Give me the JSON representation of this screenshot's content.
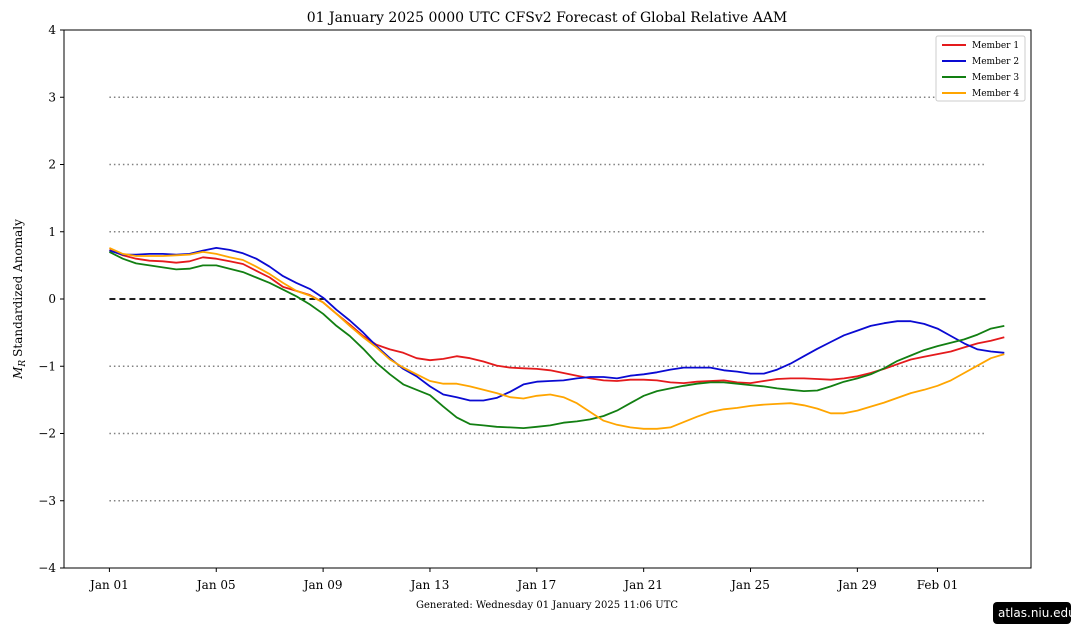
{
  "chart_data": {
    "type": "line",
    "title": "01  January  2025 0000 UTC   CFSv2 Forecast of Global Relative AAM",
    "ylabel_symbol": "M",
    "ylabel_subscript": "R",
    "ylabel": "Standardized Anomaly",
    "footer": "Generated: Wednesday  01  January  2025  11:06 UTC",
    "watermark": "atlas.niu.edu",
    "ylim": [
      -4,
      4
    ],
    "yticks": [
      -4,
      -3,
      -2,
      -1,
      0,
      1,
      2,
      3,
      4
    ],
    "ytick_labels": [
      "−4",
      "−3",
      "−2",
      "−1",
      "0",
      "1",
      "2",
      "3",
      "4"
    ],
    "xlim_days": [
      -1.7,
      34.5
    ],
    "xticks": [
      {
        "day": 0,
        "label": "Jan 01"
      },
      {
        "day": 4,
        "label": "Jan 05"
      },
      {
        "day": 8,
        "label": "Jan 09"
      },
      {
        "day": 12,
        "label": "Jan 13"
      },
      {
        "day": 16,
        "label": "Jan 17"
      },
      {
        "day": 20,
        "label": "Jan 21"
      },
      {
        "day": 24,
        "label": "Jan 25"
      },
      {
        "day": 28,
        "label": "Jan 29"
      },
      {
        "day": 31,
        "label": "Feb 01"
      }
    ],
    "reference_lines": [
      {
        "y": 3,
        "style": "dotted",
        "color": "#808080"
      },
      {
        "y": 2,
        "style": "dotted",
        "color": "#808080"
      },
      {
        "y": 1,
        "style": "dotted",
        "color": "#808080"
      },
      {
        "y": 0,
        "style": "dashed",
        "color": "#000000"
      },
      {
        "y": -1,
        "style": "dotted",
        "color": "#808080"
      },
      {
        "y": -2,
        "style": "dotted",
        "color": "#808080"
      },
      {
        "y": -3,
        "style": "dotted",
        "color": "#808080"
      }
    ],
    "reference_line_span_days": [
      0,
      32.8
    ],
    "legend_position": "top-right",
    "grid": false,
    "series": [
      {
        "name": "Member 1",
        "color": "#e41a1c",
        "points": [
          [
            0,
            0.73
          ],
          [
            0.5,
            0.65
          ],
          [
            1,
            0.6
          ],
          [
            1.5,
            0.57
          ],
          [
            2,
            0.56
          ],
          [
            2.5,
            0.54
          ],
          [
            3,
            0.56
          ],
          [
            3.5,
            0.62
          ],
          [
            4,
            0.6
          ],
          [
            4.5,
            0.56
          ],
          [
            5,
            0.52
          ],
          [
            5.5,
            0.42
          ],
          [
            6,
            0.32
          ],
          [
            6.5,
            0.18
          ],
          [
            7,
            0.12
          ],
          [
            7.5,
            0.06
          ],
          [
            8,
            -0.05
          ],
          [
            8.5,
            -0.22
          ],
          [
            9,
            -0.38
          ],
          [
            9.5,
            -0.55
          ],
          [
            10,
            -0.68
          ],
          [
            10.5,
            -0.75
          ],
          [
            11,
            -0.8
          ],
          [
            11.5,
            -0.88
          ],
          [
            12,
            -0.91
          ],
          [
            12.5,
            -0.89
          ],
          [
            13,
            -0.85
          ],
          [
            13.5,
            -0.88
          ],
          [
            14,
            -0.93
          ],
          [
            14.5,
            -0.99
          ],
          [
            15,
            -1.02
          ],
          [
            15.5,
            -1.03
          ],
          [
            16,
            -1.04
          ],
          [
            16.5,
            -1.06
          ],
          [
            17,
            -1.1
          ],
          [
            17.5,
            -1.14
          ],
          [
            18,
            -1.18
          ],
          [
            18.5,
            -1.21
          ],
          [
            19,
            -1.22
          ],
          [
            19.5,
            -1.2
          ],
          [
            20,
            -1.2
          ],
          [
            20.5,
            -1.21
          ],
          [
            21,
            -1.24
          ],
          [
            21.5,
            -1.25
          ],
          [
            22,
            -1.23
          ],
          [
            22.5,
            -1.22
          ],
          [
            23,
            -1.21
          ],
          [
            23.5,
            -1.24
          ],
          [
            24,
            -1.25
          ],
          [
            24.5,
            -1.22
          ],
          [
            25,
            -1.19
          ],
          [
            25.5,
            -1.18
          ],
          [
            26,
            -1.18
          ],
          [
            26.5,
            -1.19
          ],
          [
            27,
            -1.2
          ],
          [
            27.5,
            -1.18
          ],
          [
            28,
            -1.15
          ],
          [
            28.5,
            -1.1
          ],
          [
            29,
            -1.04
          ],
          [
            29.5,
            -0.97
          ],
          [
            30,
            -0.9
          ],
          [
            30.5,
            -0.86
          ],
          [
            31,
            -0.82
          ],
          [
            31.5,
            -0.78
          ],
          [
            32,
            -0.72
          ],
          [
            32.5,
            -0.66
          ],
          [
            33,
            -0.62
          ],
          [
            33.5,
            -0.57
          ]
        ]
      },
      {
        "name": "Member 2",
        "color": "#0a0ad2",
        "points": [
          [
            0,
            0.72
          ],
          [
            0.5,
            0.66
          ],
          [
            1,
            0.66
          ],
          [
            1.5,
            0.67
          ],
          [
            2,
            0.67
          ],
          [
            2.5,
            0.66
          ],
          [
            3,
            0.67
          ],
          [
            3.5,
            0.72
          ],
          [
            4,
            0.76
          ],
          [
            4.5,
            0.73
          ],
          [
            5,
            0.68
          ],
          [
            5.5,
            0.6
          ],
          [
            6,
            0.48
          ],
          [
            6.5,
            0.34
          ],
          [
            7,
            0.24
          ],
          [
            7.5,
            0.15
          ],
          [
            8,
            0.02
          ],
          [
            8.5,
            -0.16
          ],
          [
            9,
            -0.32
          ],
          [
            9.5,
            -0.5
          ],
          [
            10,
            -0.7
          ],
          [
            10.5,
            -0.88
          ],
          [
            11,
            -1.04
          ],
          [
            11.5,
            -1.15
          ],
          [
            12,
            -1.3
          ],
          [
            12.5,
            -1.42
          ],
          [
            13,
            -1.46
          ],
          [
            13.5,
            -1.51
          ],
          [
            14,
            -1.51
          ],
          [
            14.5,
            -1.47
          ],
          [
            15,
            -1.38
          ],
          [
            15.5,
            -1.27
          ],
          [
            16,
            -1.23
          ],
          [
            16.5,
            -1.22
          ],
          [
            17,
            -1.21
          ],
          [
            17.5,
            -1.18
          ],
          [
            18,
            -1.16
          ],
          [
            18.5,
            -1.16
          ],
          [
            19,
            -1.18
          ],
          [
            19.5,
            -1.14
          ],
          [
            20,
            -1.12
          ],
          [
            20.5,
            -1.09
          ],
          [
            21,
            -1.05
          ],
          [
            21.5,
            -1.02
          ],
          [
            22,
            -1.02
          ],
          [
            22.5,
            -1.02
          ],
          [
            23,
            -1.06
          ],
          [
            23.5,
            -1.08
          ],
          [
            24,
            -1.11
          ],
          [
            24.5,
            -1.11
          ],
          [
            25,
            -1.05
          ],
          [
            25.5,
            -0.96
          ],
          [
            26,
            -0.85
          ],
          [
            26.5,
            -0.74
          ],
          [
            27,
            -0.64
          ],
          [
            27.5,
            -0.54
          ],
          [
            28,
            -0.47
          ],
          [
            28.5,
            -0.4
          ],
          [
            29,
            -0.36
          ],
          [
            29.5,
            -0.33
          ],
          [
            30,
            -0.33
          ],
          [
            30.5,
            -0.37
          ],
          [
            31,
            -0.44
          ],
          [
            31.5,
            -0.55
          ],
          [
            32,
            -0.66
          ],
          [
            32.5,
            -0.75
          ],
          [
            33,
            -0.78
          ],
          [
            33.5,
            -0.8
          ]
        ]
      },
      {
        "name": "Member 3",
        "color": "#127f12",
        "points": [
          [
            0,
            0.7
          ],
          [
            0.5,
            0.6
          ],
          [
            1,
            0.53
          ],
          [
            1.5,
            0.5
          ],
          [
            2,
            0.47
          ],
          [
            2.5,
            0.44
          ],
          [
            3,
            0.45
          ],
          [
            3.5,
            0.5
          ],
          [
            4,
            0.5
          ],
          [
            4.5,
            0.45
          ],
          [
            5,
            0.4
          ],
          [
            5.5,
            0.32
          ],
          [
            6,
            0.24
          ],
          [
            6.5,
            0.14
          ],
          [
            7,
            0.04
          ],
          [
            7.5,
            -0.08
          ],
          [
            8,
            -0.22
          ],
          [
            8.5,
            -0.4
          ],
          [
            9,
            -0.55
          ],
          [
            9.5,
            -0.74
          ],
          [
            10,
            -0.95
          ],
          [
            10.5,
            -1.12
          ],
          [
            11,
            -1.27
          ],
          [
            11.5,
            -1.35
          ],
          [
            12,
            -1.43
          ],
          [
            12.5,
            -1.6
          ],
          [
            13,
            -1.76
          ],
          [
            13.5,
            -1.86
          ],
          [
            14,
            -1.88
          ],
          [
            14.5,
            -1.9
          ],
          [
            15,
            -1.91
          ],
          [
            15.5,
            -1.92
          ],
          [
            16,
            -1.9
          ],
          [
            16.5,
            -1.88
          ],
          [
            17,
            -1.84
          ],
          [
            17.5,
            -1.82
          ],
          [
            18,
            -1.79
          ],
          [
            18.5,
            -1.74
          ],
          [
            19,
            -1.66
          ],
          [
            19.5,
            -1.55
          ],
          [
            20,
            -1.44
          ],
          [
            20.5,
            -1.37
          ],
          [
            21,
            -1.33
          ],
          [
            21.5,
            -1.29
          ],
          [
            22,
            -1.26
          ],
          [
            22.5,
            -1.24
          ],
          [
            23,
            -1.24
          ],
          [
            23.5,
            -1.26
          ],
          [
            24,
            -1.28
          ],
          [
            24.5,
            -1.3
          ],
          [
            25,
            -1.33
          ],
          [
            25.5,
            -1.35
          ],
          [
            26,
            -1.37
          ],
          [
            26.5,
            -1.36
          ],
          [
            27,
            -1.3
          ],
          [
            27.5,
            -1.23
          ],
          [
            28,
            -1.18
          ],
          [
            28.5,
            -1.12
          ],
          [
            29,
            -1.03
          ],
          [
            29.5,
            -0.92
          ],
          [
            30,
            -0.84
          ],
          [
            30.5,
            -0.76
          ],
          [
            31,
            -0.7
          ],
          [
            31.5,
            -0.65
          ],
          [
            32,
            -0.6
          ],
          [
            32.5,
            -0.53
          ],
          [
            33,
            -0.44
          ],
          [
            33.5,
            -0.4
          ]
        ]
      },
      {
        "name": "Member 4",
        "color": "#ffa500",
        "points": [
          [
            0,
            0.76
          ],
          [
            0.5,
            0.67
          ],
          [
            1,
            0.64
          ],
          [
            1.5,
            0.64
          ],
          [
            2,
            0.64
          ],
          [
            2.5,
            0.65
          ],
          [
            3,
            0.66
          ],
          [
            3.5,
            0.7
          ],
          [
            4,
            0.67
          ],
          [
            4.5,
            0.62
          ],
          [
            5,
            0.58
          ],
          [
            5.5,
            0.48
          ],
          [
            6,
            0.37
          ],
          [
            6.5,
            0.24
          ],
          [
            7,
            0.12
          ],
          [
            7.5,
            0.05
          ],
          [
            8,
            -0.05
          ],
          [
            8.5,
            -0.22
          ],
          [
            9,
            -0.4
          ],
          [
            9.5,
            -0.57
          ],
          [
            10,
            -0.72
          ],
          [
            10.5,
            -0.9
          ],
          [
            11,
            -1.02
          ],
          [
            11.5,
            -1.12
          ],
          [
            12,
            -1.22
          ],
          [
            12.5,
            -1.26
          ],
          [
            13,
            -1.26
          ],
          [
            13.5,
            -1.3
          ],
          [
            14,
            -1.35
          ],
          [
            14.5,
            -1.4
          ],
          [
            15,
            -1.46
          ],
          [
            15.5,
            -1.48
          ],
          [
            16,
            -1.44
          ],
          [
            16.5,
            -1.42
          ],
          [
            17,
            -1.46
          ],
          [
            17.5,
            -1.55
          ],
          [
            18,
            -1.68
          ],
          [
            18.5,
            -1.81
          ],
          [
            19,
            -1.87
          ],
          [
            19.5,
            -1.91
          ],
          [
            20,
            -1.93
          ],
          [
            20.5,
            -1.93
          ],
          [
            21,
            -1.91
          ],
          [
            21.5,
            -1.83
          ],
          [
            22,
            -1.75
          ],
          [
            22.5,
            -1.68
          ],
          [
            23,
            -1.64
          ],
          [
            23.5,
            -1.62
          ],
          [
            24,
            -1.59
          ],
          [
            24.5,
            -1.57
          ],
          [
            25,
            -1.56
          ],
          [
            25.5,
            -1.55
          ],
          [
            26,
            -1.58
          ],
          [
            26.5,
            -1.63
          ],
          [
            27,
            -1.7
          ],
          [
            27.5,
            -1.7
          ],
          [
            28,
            -1.66
          ],
          [
            28.5,
            -1.6
          ],
          [
            29,
            -1.54
          ],
          [
            29.5,
            -1.47
          ],
          [
            30,
            -1.4
          ],
          [
            30.5,
            -1.35
          ],
          [
            31,
            -1.29
          ],
          [
            31.5,
            -1.21
          ],
          [
            32,
            -1.1
          ],
          [
            32.5,
            -0.99
          ],
          [
            33,
            -0.88
          ],
          [
            33.5,
            -0.82
          ]
        ]
      }
    ]
  }
}
